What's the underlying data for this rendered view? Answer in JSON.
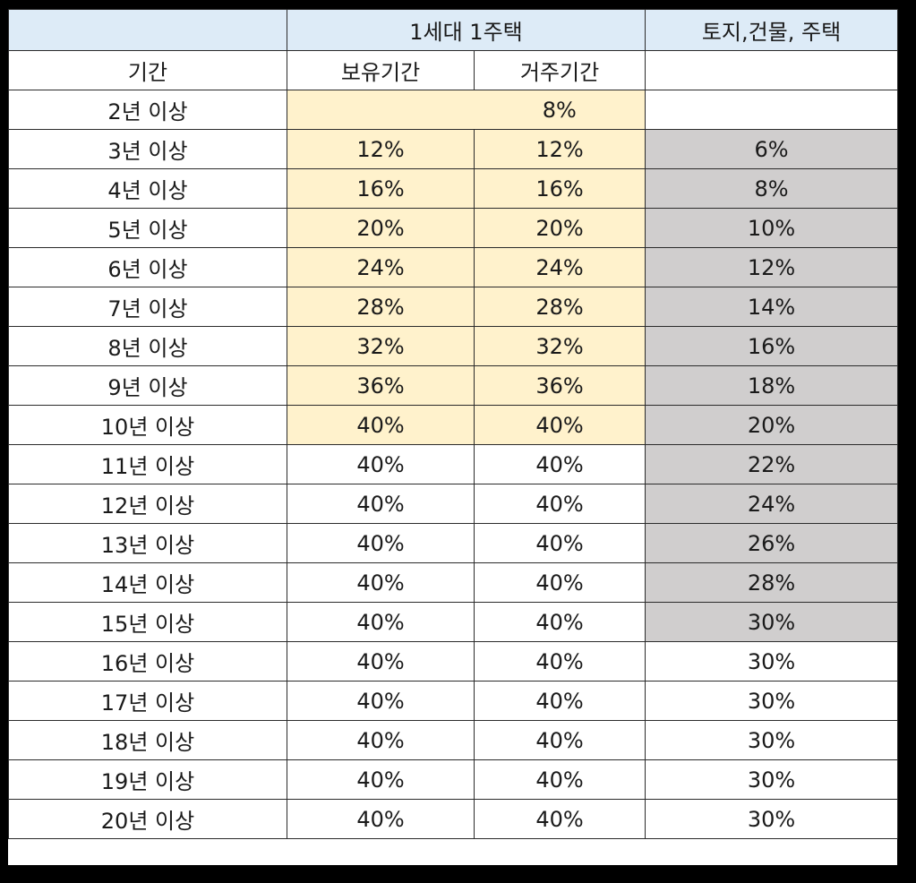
{
  "header": {
    "top": {
      "corner": "",
      "group_one_household": "1세대 1주택",
      "group_general": "토지,건물, 주택"
    },
    "sub": {
      "period": "기간",
      "holding": "보유기간",
      "residence": "거주기간",
      "general": ""
    }
  },
  "colors": {
    "header_blue": "#ddebf7",
    "highlight_yellow": "#fff2cc",
    "highlight_gray": "#d0cece",
    "border": "#2b2b2b"
  },
  "rows": [
    {
      "period": "2년 이상",
      "holding": "",
      "residence": "8%",
      "general": ""
    },
    {
      "period": "3년 이상",
      "holding": "12%",
      "residence": "12%",
      "general": "6%"
    },
    {
      "period": "4년 이상",
      "holding": "16%",
      "residence": "16%",
      "general": "8%"
    },
    {
      "period": "5년 이상",
      "holding": "20%",
      "residence": "20%",
      "general": "10%"
    },
    {
      "period": "6년 이상",
      "holding": "24%",
      "residence": "24%",
      "general": "12%"
    },
    {
      "period": "7년 이상",
      "holding": "28%",
      "residence": "28%",
      "general": "14%"
    },
    {
      "period": "8년 이상",
      "holding": "32%",
      "residence": "32%",
      "general": "16%"
    },
    {
      "period": "9년 이상",
      "holding": "36%",
      "residence": "36%",
      "general": "18%"
    },
    {
      "period": "10년 이상",
      "holding": "40%",
      "residence": "40%",
      "general": "20%"
    },
    {
      "period": "11년 이상",
      "holding": "40%",
      "residence": "40%",
      "general": "22%"
    },
    {
      "period": "12년 이상",
      "holding": "40%",
      "residence": "40%",
      "general": "24%"
    },
    {
      "period": "13년 이상",
      "holding": "40%",
      "residence": "40%",
      "general": "26%"
    },
    {
      "period": "14년 이상",
      "holding": "40%",
      "residence": "40%",
      "general": "28%"
    },
    {
      "period": "15년 이상",
      "holding": "40%",
      "residence": "40%",
      "general": "30%"
    },
    {
      "period": "16년 이상",
      "holding": "40%",
      "residence": "40%",
      "general": "30%"
    },
    {
      "period": "17년 이상",
      "holding": "40%",
      "residence": "40%",
      "general": "30%"
    },
    {
      "period": "18년 이상",
      "holding": "40%",
      "residence": "40%",
      "general": "30%"
    },
    {
      "period": "19년 이상",
      "holding": "40%",
      "residence": "40%",
      "general": "30%"
    },
    {
      "period": "20년 이상",
      "holding": "40%",
      "residence": "40%",
      "general": "30%"
    }
  ]
}
